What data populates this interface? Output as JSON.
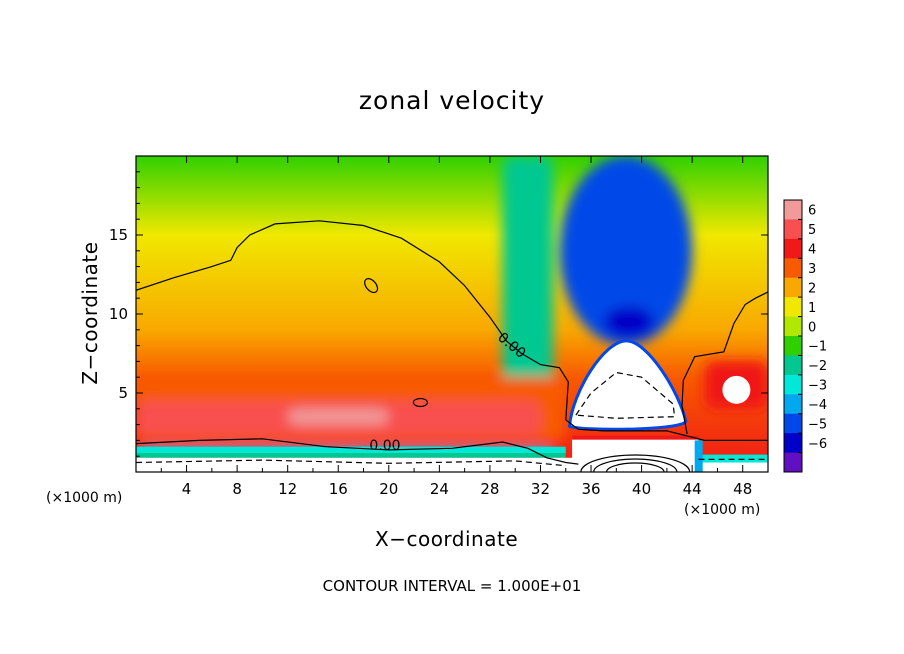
{
  "chart_data": {
    "type": "heatmap",
    "title": "zonal velocity",
    "xlabel": "X−coordinate",
    "ylabel": "Z−coordinate",
    "x_unit_left": "(×1000 m)",
    "x_unit_right": "(×1000 m)",
    "xlim": [
      0,
      50
    ],
    "ylim": [
      0,
      20
    ],
    "x_ticks": [
      4,
      8,
      12,
      16,
      20,
      24,
      28,
      32,
      36,
      40,
      44,
      48
    ],
    "x_tick_labels": [
      "4",
      "8",
      "12",
      "16",
      "20",
      "24",
      "28",
      "32",
      "36",
      "40",
      "44",
      "48"
    ],
    "y_ticks": [
      5,
      10,
      15
    ],
    "y_tick_labels": [
      "5",
      "10",
      "15"
    ],
    "colorbar": {
      "ticks": [
        6,
        5,
        4,
        3,
        2,
        1,
        0,
        -1,
        -2,
        -3,
        -4,
        -5,
        -6
      ],
      "tick_labels": [
        "6",
        "5",
        "4",
        "3",
        "2",
        "1",
        "0",
        "−1",
        "−2",
        "−3",
        "−4",
        "−5",
        "−6"
      ],
      "colors": [
        "#f09a9a",
        "#f85050",
        "#f01818",
        "#f85a00",
        "#f8a800",
        "#f0e800",
        "#b0e800",
        "#30d000",
        "#00c890",
        "#00e8d8",
        "#00a8f0",
        "#0048e8",
        "#0000c8",
        "#6010c0"
      ]
    },
    "contour_labels": [
      {
        "text": "0.00",
        "x": 29.5,
        "y": 7.8
      },
      {
        "text": "0.00",
        "x": 19.7,
        "y": 1.4
      }
    ],
    "zero_contour_upper": [
      [
        0,
        11.5
      ],
      [
        3,
        12.3
      ],
      [
        6,
        13.0
      ],
      [
        7.5,
        13.4
      ],
      [
        8,
        14.2
      ],
      [
        9,
        15.0
      ],
      [
        11,
        15.7
      ],
      [
        14.5,
        15.9
      ],
      [
        18,
        15.6
      ],
      [
        21,
        14.8
      ],
      [
        24,
        13.3
      ],
      [
        26,
        11.8
      ],
      [
        28,
        9.8
      ],
      [
        29.3,
        8.3
      ],
      [
        30.5,
        7.5
      ],
      [
        32,
        6.8
      ],
      [
        33.5,
        6.6
      ],
      [
        34.2,
        5.7
      ],
      [
        34,
        3.3
      ],
      [
        35,
        2.7
      ],
      [
        37,
        2.6
      ],
      [
        42,
        2.6
      ],
      [
        45,
        2.0
      ],
      [
        50,
        2.0
      ]
    ],
    "zero_contour_right": [
      [
        43.6,
        2.4
      ],
      [
        43.2,
        4.2
      ],
      [
        43.3,
        5.8
      ],
      [
        44.2,
        7.3
      ],
      [
        46.5,
        7.6
      ],
      [
        47.3,
        9.4
      ],
      [
        48.2,
        10.6
      ],
      [
        49,
        11.0
      ],
      [
        50,
        11.4
      ]
    ],
    "zero_contour_lower": [
      [
        0,
        1.8
      ],
      [
        5,
        2.0
      ],
      [
        10,
        2.1
      ],
      [
        15,
        1.6
      ],
      [
        20,
        1.4
      ],
      [
        25,
        1.5
      ],
      [
        29,
        1.9
      ],
      [
        31,
        1.5
      ],
      [
        32.5,
        0.9
      ],
      [
        34,
        0.6
      ],
      [
        35,
        0.5
      ]
    ],
    "regions": [
      {
        "kind": "zone",
        "level": -2.5,
        "x0": 29,
        "x1": 33,
        "y0": 4,
        "y1": 20
      },
      {
        "kind": "zone",
        "level": -5,
        "x0": 33.5,
        "x1": 44,
        "y0": 8,
        "y1": 20
      },
      {
        "kind": "zone",
        "level": -6,
        "x0": 37,
        "x1": 41,
        "y0": 8.5,
        "y1": 10.5
      },
      {
        "kind": "zone",
        "level": 3,
        "x0": 0,
        "x1": 34,
        "y0": 2,
        "y1": 6
      },
      {
        "kind": "zone",
        "level": 5,
        "x0": 0,
        "x1": 32,
        "y0": 2.3,
        "y1": 4.5
      },
      {
        "kind": "zone",
        "level": 6,
        "x0": 12,
        "x1": 20,
        "y0": 3,
        "y1": 4
      },
      {
        "kind": "zone",
        "level": 4,
        "x0": 45,
        "x1": 50,
        "y0": 4,
        "y1": 7
      },
      {
        "kind": "zone",
        "level": -4,
        "x0": 0,
        "x1": 33,
        "y0": 0.8,
        "y1": 1.5
      }
    ]
  },
  "footnote": "CONTOUR INTERVAL = 1.000E+01"
}
